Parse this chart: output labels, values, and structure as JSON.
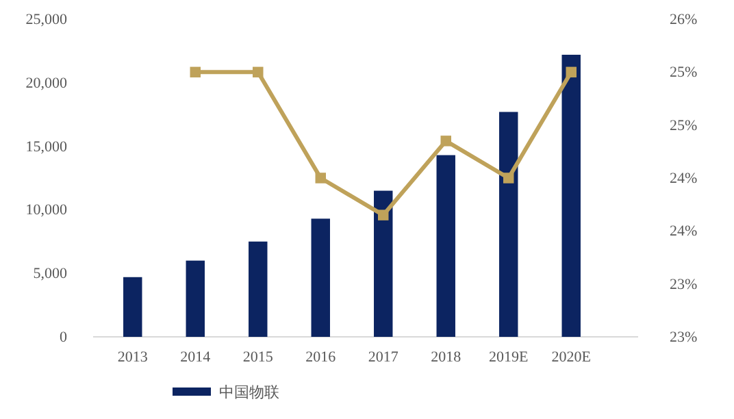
{
  "chart_data": {
    "type": "bar",
    "categories": [
      "2013",
      "2014",
      "2015",
      "2016",
      "2017",
      "2018",
      "2019E",
      "2020E"
    ],
    "series": [
      {
        "name": "中国物联",
        "color": "#0c2461",
        "values": [
          4700,
          6000,
          7500,
          9300,
          11500,
          14300,
          17700,
          22200
        ]
      },
      {
        "type": "line",
        "axis": "y2",
        "color": "#bfa25a",
        "marker": "square",
        "values": [
          null,
          25.5,
          25.5,
          24.5,
          24.15,
          24.85,
          24.5,
          25.5
        ]
      }
    ],
    "ylim": [
      0,
      25000
    ],
    "yticks": [
      0,
      {
        "value": 5000,
        "label": "5,000"
      },
      {
        "value": 10000,
        "label": "10,000"
      },
      {
        "value": 15000,
        "label": "15,000"
      },
      {
        "value": 20000,
        "label": "20,000"
      },
      {
        "value": 25000,
        "label": "25,000"
      }
    ],
    "y2lim": [
      23,
      26
    ],
    "y2ticks": [
      {
        "value": 23,
        "label": "23%"
      },
      {
        "value": 23.5,
        "label": "23%"
      },
      {
        "value": 24,
        "label": "24%"
      },
      {
        "value": 24.5,
        "label": "24%"
      },
      {
        "value": 25,
        "label": "25%"
      },
      {
        "value": 25.5,
        "label": "25%"
      },
      {
        "value": 26,
        "label": "26%"
      }
    ],
    "grid": false,
    "legend": "bottom"
  }
}
